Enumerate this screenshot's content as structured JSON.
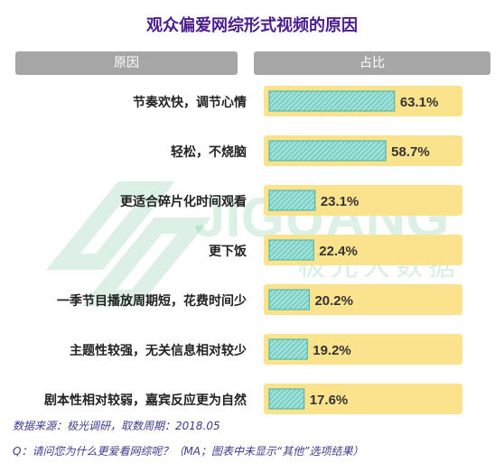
{
  "title": "观众偏爱网综形式视频的原因",
  "header": {
    "left": "原因",
    "right": "占比"
  },
  "chart_data": {
    "type": "bar",
    "orientation": "horizontal",
    "categories": [
      "节奏欢快，调节心情",
      "轻松，不烧脑",
      "更适合碎片化时间观看",
      "更下饭",
      "一季节目播放周期短，花费时间少",
      "主题性较强，无关信息相对较少",
      "剧本性相对较弱，嘉宾反应更为自然"
    ],
    "values": [
      63.1,
      58.7,
      23.1,
      22.4,
      20.2,
      19.2,
      17.6
    ],
    "value_labels": [
      "63.1%",
      "58.7%",
      "23.1%",
      "22.4%",
      "20.2%",
      "19.2%",
      "17.6%"
    ],
    "unit": "%",
    "xlim": [
      0,
      100
    ],
    "grid": false,
    "colors": {
      "bar": "#7fd3cc",
      "row_background": "#fbe38e",
      "bar_border": "#3fb0a6"
    }
  },
  "watermark": {
    "brand": "JIGUANG",
    "subtitle": "极光大数据"
  },
  "footnotes": {
    "source": "数据来源：极光调研，取数周期：2018.05",
    "question": "Q：请问您为什么更爱看网综呢？（MA；图表中未显示“其他”选项结果）"
  }
}
